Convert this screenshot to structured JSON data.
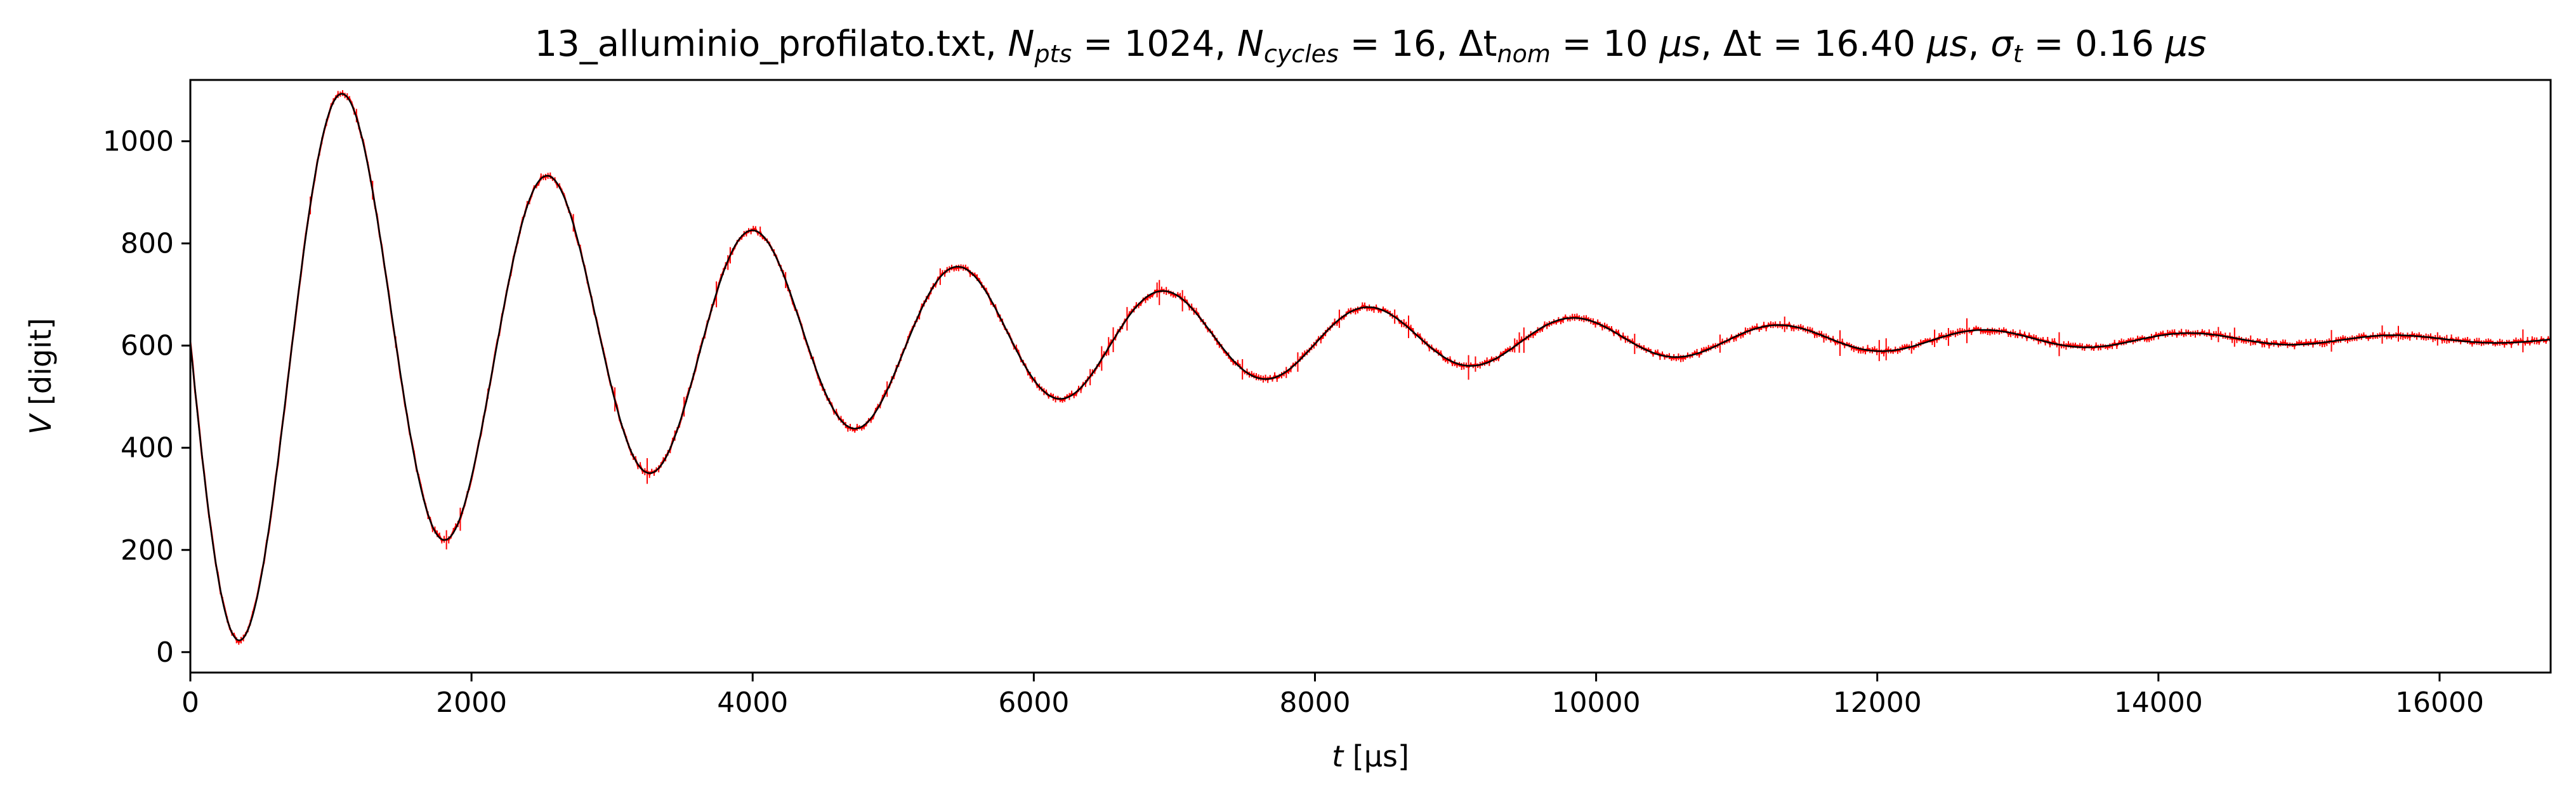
{
  "chart_data": {
    "type": "line",
    "title": {
      "file": "13_alluminio_profilato.txt",
      "n_pts_symbol": "N",
      "n_pts_sub": "pts",
      "n_pts_value": "1024",
      "n_cycles_symbol": "N",
      "n_cycles_sub": "cycles",
      "n_cycles_value": "16",
      "dt_nom_symbol": "Δt",
      "dt_nom_sub": "nom",
      "dt_nom_value": "10",
      "dt_symbol": "Δt",
      "dt_value": "16.40",
      "sigma_symbol": "σ",
      "sigma_sub": "t",
      "sigma_value": "0.16",
      "unit": "μs"
    },
    "xlabel": {
      "symbol": "t",
      "unit": "[μs]"
    },
    "ylabel": {
      "symbol": "V",
      "unit": "[digit]"
    },
    "xlim": [
      0,
      16790
    ],
    "ylim": [
      -40,
      1120
    ],
    "x_ticks": [
      0,
      2000,
      4000,
      6000,
      8000,
      10000,
      12000,
      14000,
      16000
    ],
    "y_ticks": [
      0,
      200,
      400,
      600,
      800,
      1000
    ],
    "grid": false,
    "model": {
      "description_free": true,
      "offset": 612,
      "amplitude": 650,
      "decay_time": 3600,
      "period": 1460,
      "phase_time": 1093,
      "t_start": 0,
      "t_end": 16790,
      "n_points": 1024
    },
    "series": [
      {
        "values_color": "#ff0000"
      },
      {
        "values_color": "#000000"
      }
    ],
    "colors": {
      "data": "#ff0000",
      "fit": "#000000",
      "axes": "#000000"
    }
  }
}
